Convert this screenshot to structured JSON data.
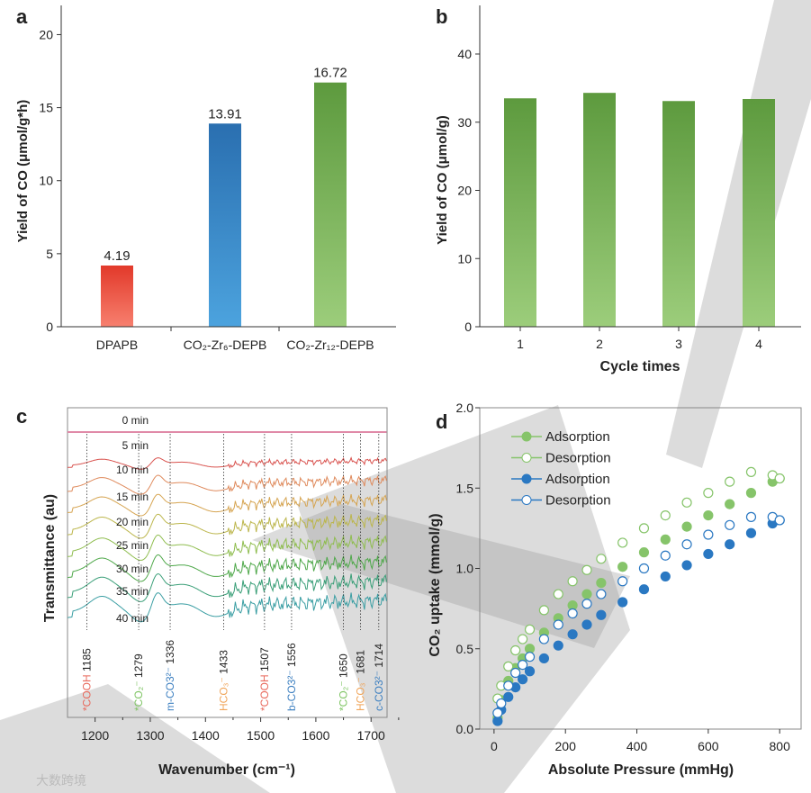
{
  "watermark": "大数跨境",
  "chart_data": [
    {
      "panel": "a",
      "type": "bar",
      "categories": [
        "DPAPB",
        "CO₂-Zr₆-DEPB",
        "CO₂-Zr₁₂-DEPB"
      ],
      "values": [
        4.19,
        13.91,
        16.72
      ],
      "value_labels": [
        "4.19",
        "13.91",
        "16.72"
      ],
      "colors": [
        [
          "#e2392a",
          "#f7806f"
        ],
        [
          "#2a6fb0",
          "#4ca3de"
        ],
        [
          "#5d9a3e",
          "#9ccd7b"
        ]
      ],
      "xlabel": "",
      "ylabel": "Yield of CO (μmol/g*h)",
      "ylim": [
        0,
        22
      ],
      "yticks": [
        0,
        5,
        10,
        15,
        20
      ]
    },
    {
      "panel": "b",
      "type": "bar",
      "categories": [
        "1",
        "2",
        "3",
        "4"
      ],
      "values": [
        33.5,
        34.3,
        33.1,
        33.4
      ],
      "colors": [
        "#5d9a3e",
        "#9ccd7b"
      ],
      "xlabel": "Cycle times",
      "ylabel": "Yield of CO (μmol/g)",
      "ylim": [
        0,
        46
      ],
      "yticks": [
        0,
        10,
        20,
        30,
        40
      ]
    },
    {
      "panel": "c",
      "type": "line",
      "xlabel": "Wavenumber (cm⁻¹)",
      "ylabel": "Transmittance (au)",
      "xlim": [
        1150,
        1729
      ],
      "xticks": [
        1200,
        1300,
        1400,
        1500,
        1600,
        1700
      ],
      "series": [
        {
          "name": "0 min",
          "color": "#e08aa8",
          "amplitude": 0
        },
        {
          "name": "5 min",
          "color": "#d9534f",
          "amplitude": 0.45
        },
        {
          "name": "10 min",
          "color": "#df8a5c",
          "amplitude": 0.75
        },
        {
          "name": "15 min",
          "color": "#d6a552",
          "amplitude": 0.85
        },
        {
          "name": "20 min",
          "color": "#bcb64c",
          "amplitude": 0.95
        },
        {
          "name": "25 min",
          "color": "#8fbd4f",
          "amplitude": 1.0
        },
        {
          "name": "30 min",
          "color": "#4fa84a",
          "amplitude": 1.05
        },
        {
          "name": "35 min",
          "color": "#3a9f78",
          "amplitude": 1.1
        },
        {
          "name": "40 min",
          "color": "#3a9ea3",
          "amplitude": 1.15
        }
      ],
      "annotations": [
        {
          "species": "*COOH",
          "wavenumber": 1185,
          "label": "1185",
          "color": "#e8675a"
        },
        {
          "species": "*CO₂⁻",
          "wavenumber": 1279,
          "label": "1279",
          "color": "#7dc462"
        },
        {
          "species": "m-CO3²⁻",
          "wavenumber": 1336,
          "label": "1336",
          "color": "#3c7fc0"
        },
        {
          "species": "HCO₃⁻",
          "wavenumber": 1433,
          "label": "1433",
          "color": "#f0a458"
        },
        {
          "species": "*COOH",
          "wavenumber": 1507,
          "label": "1507",
          "color": "#e8675a"
        },
        {
          "species": "b-CO3²⁻",
          "wavenumber": 1556,
          "label": "1556",
          "color": "#3c7fc0"
        },
        {
          "species": "*CO₂⁻",
          "wavenumber": 1650,
          "label": "1650",
          "color": "#7dc462"
        },
        {
          "species": "HCO₃⁻",
          "wavenumber": 1681,
          "label": "1681",
          "color": "#f0a458"
        },
        {
          "species": "c-CO3²⁻",
          "wavenumber": 1714,
          "label": "1714",
          "color": "#3c7fc0"
        }
      ]
    },
    {
      "panel": "d",
      "type": "scatter",
      "xlabel": "Absolute Pressure (mmHg)",
      "ylabel": "CO₂ uptake (mmol/g)",
      "xlim": [
        -40,
        860
      ],
      "ylim": [
        0,
        2.0
      ],
      "xticks": [
        0,
        200,
        400,
        600,
        800
      ],
      "yticks": [
        "0.0",
        "0.5",
        "1.0",
        "1.5",
        "2.0"
      ],
      "x": [
        10,
        20,
        40,
        60,
        80,
        100,
        140,
        180,
        220,
        260,
        300,
        360,
        420,
        480,
        540,
        600,
        660,
        720,
        780,
        800
      ],
      "series": [
        {
          "name": "Adsorption",
          "color": "#86c46a",
          "filled": true,
          "values": [
            0.07,
            0.18,
            0.3,
            0.38,
            0.44,
            0.5,
            0.6,
            0.69,
            0.77,
            0.84,
            0.91,
            1.01,
            1.1,
            1.18,
            1.26,
            1.33,
            1.4,
            1.47,
            1.54,
            1.56
          ]
        },
        {
          "name": "Desorption",
          "color": "#86c46a",
          "filled": false,
          "values": [
            0.19,
            0.27,
            0.39,
            0.49,
            0.56,
            0.62,
            0.74,
            0.84,
            0.92,
            0.99,
            1.06,
            1.16,
            1.25,
            1.33,
            1.41,
            1.47,
            1.54,
            1.6,
            1.58,
            1.56
          ]
        },
        {
          "name": "Adsorption",
          "color": "#2a78c2",
          "filled": true,
          "values": [
            0.05,
            0.12,
            0.2,
            0.26,
            0.31,
            0.36,
            0.44,
            0.52,
            0.59,
            0.65,
            0.71,
            0.79,
            0.87,
            0.95,
            1.02,
            1.09,
            1.15,
            1.22,
            1.28,
            1.3
          ]
        },
        {
          "name": "Desorption",
          "color": "#2a78c2",
          "filled": false,
          "values": [
            0.1,
            0.16,
            0.27,
            0.35,
            0.4,
            0.45,
            0.56,
            0.65,
            0.72,
            0.78,
            0.84,
            0.92,
            1.0,
            1.08,
            1.15,
            1.21,
            1.27,
            1.32,
            1.32,
            1.3
          ]
        }
      ],
      "legend": "top-left"
    }
  ],
  "panel_letters": [
    "a",
    "b",
    "c",
    "d"
  ]
}
